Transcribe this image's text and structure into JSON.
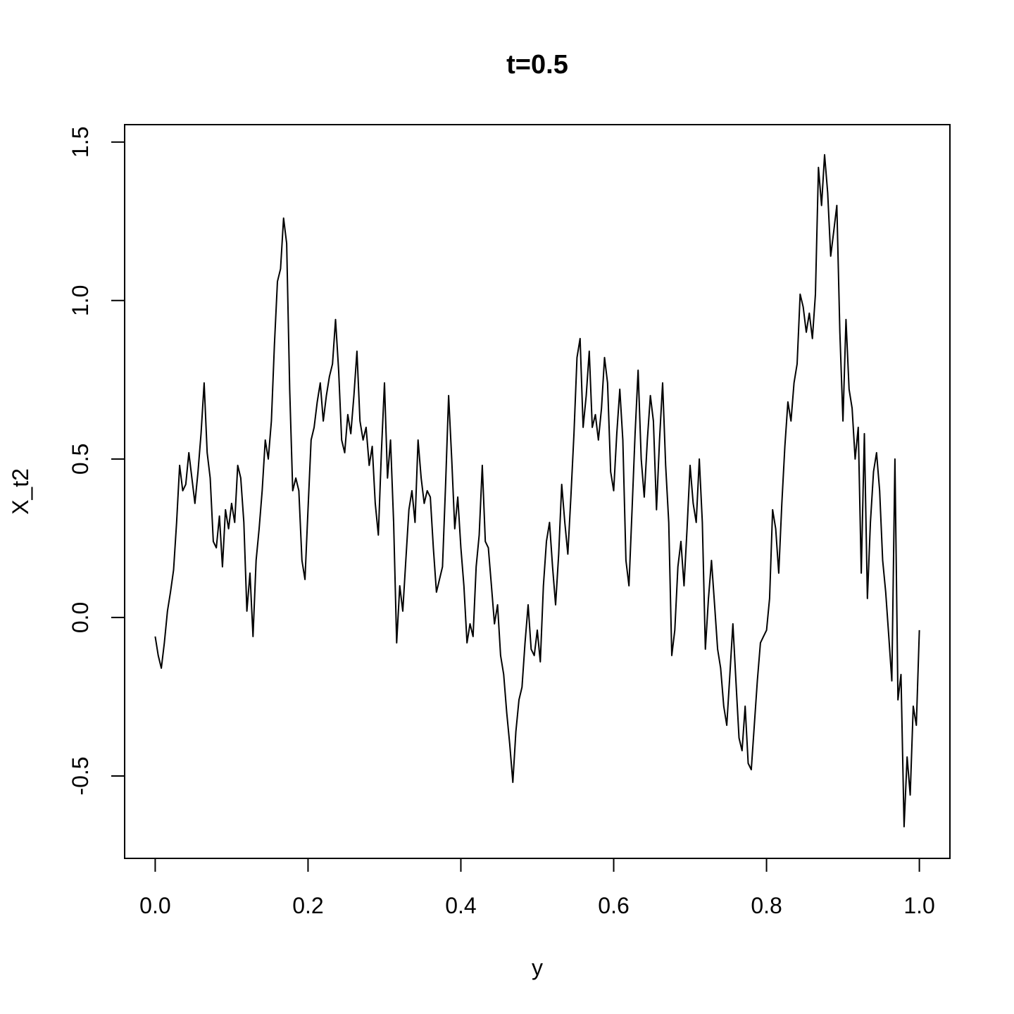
{
  "chart_data": {
    "type": "line",
    "title": "t=0.5",
    "xlabel": "y",
    "ylabel": "X_t2",
    "xlim": [
      -0.04,
      1.04
    ],
    "ylim": [
      -0.76,
      1.555
    ],
    "xticks": [
      0.0,
      0.2,
      0.4,
      0.6,
      0.8,
      1.0
    ],
    "xtick_labels": [
      "0.0",
      "0.2",
      "0.4",
      "0.6",
      "0.8",
      "1.0"
    ],
    "yticks": [
      -0.5,
      0.0,
      0.5,
      1.0,
      1.5
    ],
    "ytick_labels": [
      "-0.5",
      "0.0",
      "0.5",
      "1.0",
      "1.5"
    ],
    "grid": false,
    "legend": false,
    "line_color": "#000000",
    "series": [
      {
        "points": [
          [
            0.0,
            -0.06
          ],
          [
            0.004,
            -0.12
          ],
          [
            0.008,
            -0.16
          ],
          [
            0.012,
            -0.08
          ],
          [
            0.016,
            0.02
          ],
          [
            0.02,
            0.08
          ],
          [
            0.024,
            0.15
          ],
          [
            0.028,
            0.3
          ],
          [
            0.032,
            0.48
          ],
          [
            0.036,
            0.4
          ],
          [
            0.04,
            0.42
          ],
          [
            0.044,
            0.52
          ],
          [
            0.048,
            0.44
          ],
          [
            0.052,
            0.36
          ],
          [
            0.056,
            0.46
          ],
          [
            0.06,
            0.58
          ],
          [
            0.064,
            0.74
          ],
          [
            0.068,
            0.52
          ],
          [
            0.072,
            0.44
          ],
          [
            0.076,
            0.24
          ],
          [
            0.08,
            0.22
          ],
          [
            0.084,
            0.32
          ],
          [
            0.088,
            0.16
          ],
          [
            0.092,
            0.34
          ],
          [
            0.096,
            0.28
          ],
          [
            0.1,
            0.36
          ],
          [
            0.104,
            0.3
          ],
          [
            0.108,
            0.48
          ],
          [
            0.112,
            0.44
          ],
          [
            0.116,
            0.3
          ],
          [
            0.12,
            0.02
          ],
          [
            0.124,
            0.14
          ],
          [
            0.128,
            -0.06
          ],
          [
            0.132,
            0.18
          ],
          [
            0.136,
            0.28
          ],
          [
            0.14,
            0.4
          ],
          [
            0.144,
            0.56
          ],
          [
            0.148,
            0.5
          ],
          [
            0.152,
            0.62
          ],
          [
            0.156,
            0.86
          ],
          [
            0.16,
            1.06
          ],
          [
            0.164,
            1.1
          ],
          [
            0.168,
            1.26
          ],
          [
            0.172,
            1.18
          ],
          [
            0.176,
            0.72
          ],
          [
            0.18,
            0.4
          ],
          [
            0.184,
            0.44
          ],
          [
            0.188,
            0.4
          ],
          [
            0.192,
            0.18
          ],
          [
            0.196,
            0.12
          ],
          [
            0.2,
            0.34
          ],
          [
            0.204,
            0.56
          ],
          [
            0.208,
            0.6
          ],
          [
            0.212,
            0.68
          ],
          [
            0.216,
            0.74
          ],
          [
            0.22,
            0.62
          ],
          [
            0.224,
            0.7
          ],
          [
            0.228,
            0.76
          ],
          [
            0.232,
            0.8
          ],
          [
            0.236,
            0.94
          ],
          [
            0.24,
            0.78
          ],
          [
            0.244,
            0.56
          ],
          [
            0.248,
            0.52
          ],
          [
            0.252,
            0.64
          ],
          [
            0.256,
            0.58
          ],
          [
            0.26,
            0.7
          ],
          [
            0.264,
            0.84
          ],
          [
            0.268,
            0.62
          ],
          [
            0.272,
            0.56
          ],
          [
            0.276,
            0.6
          ],
          [
            0.28,
            0.48
          ],
          [
            0.284,
            0.54
          ],
          [
            0.288,
            0.36
          ],
          [
            0.292,
            0.26
          ],
          [
            0.296,
            0.52
          ],
          [
            0.3,
            0.74
          ],
          [
            0.304,
            0.44
          ],
          [
            0.308,
            0.56
          ],
          [
            0.312,
            0.3
          ],
          [
            0.316,
            -0.08
          ],
          [
            0.32,
            0.1
          ],
          [
            0.324,
            0.02
          ],
          [
            0.328,
            0.18
          ],
          [
            0.332,
            0.34
          ],
          [
            0.336,
            0.4
          ],
          [
            0.34,
            0.3
          ],
          [
            0.344,
            0.56
          ],
          [
            0.348,
            0.44
          ],
          [
            0.352,
            0.36
          ],
          [
            0.356,
            0.4
          ],
          [
            0.36,
            0.38
          ],
          [
            0.364,
            0.22
          ],
          [
            0.368,
            0.08
          ],
          [
            0.372,
            0.12
          ],
          [
            0.376,
            0.16
          ],
          [
            0.38,
            0.42
          ],
          [
            0.384,
            0.7
          ],
          [
            0.388,
            0.5
          ],
          [
            0.392,
            0.28
          ],
          [
            0.396,
            0.38
          ],
          [
            0.4,
            0.22
          ],
          [
            0.404,
            0.1
          ],
          [
            0.408,
            -0.08
          ],
          [
            0.412,
            -0.02
          ],
          [
            0.416,
            -0.06
          ],
          [
            0.42,
            0.16
          ],
          [
            0.424,
            0.26
          ],
          [
            0.428,
            0.48
          ],
          [
            0.432,
            0.24
          ],
          [
            0.436,
            0.22
          ],
          [
            0.44,
            0.1
          ],
          [
            0.444,
            -0.02
          ],
          [
            0.448,
            0.04
          ],
          [
            0.452,
            -0.12
          ],
          [
            0.456,
            -0.18
          ],
          [
            0.46,
            -0.3
          ],
          [
            0.464,
            -0.4
          ],
          [
            0.468,
            -0.52
          ],
          [
            0.472,
            -0.36
          ],
          [
            0.476,
            -0.26
          ],
          [
            0.48,
            -0.22
          ],
          [
            0.484,
            -0.08
          ],
          [
            0.488,
            0.04
          ],
          [
            0.492,
            -0.1
          ],
          [
            0.496,
            -0.12
          ],
          [
            0.5,
            -0.04
          ],
          [
            0.504,
            -0.14
          ],
          [
            0.508,
            0.1
          ],
          [
            0.512,
            0.24
          ],
          [
            0.516,
            0.3
          ],
          [
            0.52,
            0.16
          ],
          [
            0.524,
            0.04
          ],
          [
            0.528,
            0.2
          ],
          [
            0.532,
            0.42
          ],
          [
            0.536,
            0.3
          ],
          [
            0.54,
            0.2
          ],
          [
            0.544,
            0.38
          ],
          [
            0.548,
            0.58
          ],
          [
            0.552,
            0.82
          ],
          [
            0.556,
            0.88
          ],
          [
            0.56,
            0.6
          ],
          [
            0.564,
            0.7
          ],
          [
            0.568,
            0.84
          ],
          [
            0.572,
            0.6
          ],
          [
            0.576,
            0.64
          ],
          [
            0.58,
            0.56
          ],
          [
            0.584,
            0.66
          ],
          [
            0.588,
            0.82
          ],
          [
            0.592,
            0.74
          ],
          [
            0.596,
            0.46
          ],
          [
            0.6,
            0.4
          ],
          [
            0.604,
            0.58
          ],
          [
            0.608,
            0.72
          ],
          [
            0.612,
            0.56
          ],
          [
            0.616,
            0.18
          ],
          [
            0.62,
            0.1
          ],
          [
            0.624,
            0.34
          ],
          [
            0.628,
            0.58
          ],
          [
            0.632,
            0.78
          ],
          [
            0.636,
            0.5
          ],
          [
            0.64,
            0.38
          ],
          [
            0.644,
            0.56
          ],
          [
            0.648,
            0.7
          ],
          [
            0.652,
            0.62
          ],
          [
            0.656,
            0.34
          ],
          [
            0.66,
            0.56
          ],
          [
            0.664,
            0.74
          ],
          [
            0.668,
            0.48
          ],
          [
            0.672,
            0.3
          ],
          [
            0.676,
            -0.12
          ],
          [
            0.68,
            -0.04
          ],
          [
            0.684,
            0.16
          ],
          [
            0.688,
            0.24
          ],
          [
            0.692,
            0.1
          ],
          [
            0.696,
            0.28
          ],
          [
            0.7,
            0.48
          ],
          [
            0.704,
            0.36
          ],
          [
            0.708,
            0.3
          ],
          [
            0.712,
            0.5
          ],
          [
            0.716,
            0.3
          ],
          [
            0.72,
            -0.1
          ],
          [
            0.724,
            0.06
          ],
          [
            0.728,
            0.18
          ],
          [
            0.732,
            0.04
          ],
          [
            0.736,
            -0.1
          ],
          [
            0.74,
            -0.16
          ],
          [
            0.744,
            -0.28
          ],
          [
            0.748,
            -0.34
          ],
          [
            0.752,
            -0.18
          ],
          [
            0.756,
            -0.02
          ],
          [
            0.76,
            -0.2
          ],
          [
            0.764,
            -0.38
          ],
          [
            0.768,
            -0.42
          ],
          [
            0.772,
            -0.28
          ],
          [
            0.776,
            -0.46
          ],
          [
            0.78,
            -0.48
          ],
          [
            0.784,
            -0.34
          ],
          [
            0.788,
            -0.2
          ],
          [
            0.792,
            -0.08
          ],
          [
            0.796,
            -0.06
          ],
          [
            0.8,
            -0.04
          ],
          [
            0.804,
            0.06
          ],
          [
            0.808,
            0.34
          ],
          [
            0.812,
            0.28
          ],
          [
            0.816,
            0.14
          ],
          [
            0.82,
            0.36
          ],
          [
            0.824,
            0.54
          ],
          [
            0.828,
            0.68
          ],
          [
            0.832,
            0.62
          ],
          [
            0.836,
            0.74
          ],
          [
            0.84,
            0.8
          ],
          [
            0.844,
            1.02
          ],
          [
            0.848,
            0.98
          ],
          [
            0.852,
            0.9
          ],
          [
            0.856,
            0.96
          ],
          [
            0.86,
            0.88
          ],
          [
            0.864,
            1.02
          ],
          [
            0.868,
            1.42
          ],
          [
            0.872,
            1.3
          ],
          [
            0.876,
            1.46
          ],
          [
            0.88,
            1.34
          ],
          [
            0.884,
            1.14
          ],
          [
            0.888,
            1.22
          ],
          [
            0.892,
            1.3
          ],
          [
            0.896,
            0.9
          ],
          [
            0.9,
            0.62
          ],
          [
            0.904,
            0.94
          ],
          [
            0.908,
            0.72
          ],
          [
            0.912,
            0.66
          ],
          [
            0.916,
            0.5
          ],
          [
            0.92,
            0.6
          ],
          [
            0.924,
            0.14
          ],
          [
            0.928,
            0.58
          ],
          [
            0.932,
            0.06
          ],
          [
            0.936,
            0.3
          ],
          [
            0.94,
            0.46
          ],
          [
            0.944,
            0.52
          ],
          [
            0.948,
            0.4
          ],
          [
            0.952,
            0.18
          ],
          [
            0.956,
            0.08
          ],
          [
            0.96,
            -0.06
          ],
          [
            0.964,
            -0.2
          ],
          [
            0.968,
            0.5
          ],
          [
            0.972,
            -0.26
          ],
          [
            0.976,
            -0.18
          ],
          [
            0.98,
            -0.66
          ],
          [
            0.984,
            -0.44
          ],
          [
            0.988,
            -0.56
          ],
          [
            0.992,
            -0.28
          ],
          [
            0.996,
            -0.34
          ],
          [
            1.0,
            -0.04
          ]
        ]
      }
    ]
  }
}
